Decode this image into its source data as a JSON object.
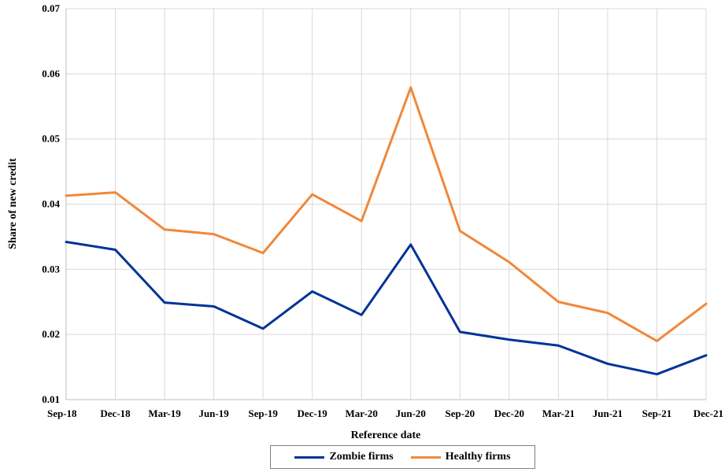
{
  "chart_data": {
    "type": "line",
    "title": "",
    "xlabel": "Reference date",
    "ylabel": "Share of new credit",
    "categories": [
      "Sep-18",
      "Dec-18",
      "Mar-19",
      "Jun-19",
      "Sep-19",
      "Dec-19",
      "Mar-20",
      "Jun-20",
      "Sep-20",
      "Dec-20",
      "Mar-21",
      "Jun-21",
      "Sep-21",
      "Dec-21"
    ],
    "ylim": [
      0.01,
      0.07
    ],
    "yticks": [
      "0.01",
      "0.02",
      "0.03",
      "0.04",
      "0.05",
      "0.06",
      "0.07"
    ],
    "grid": true,
    "legend_position": "bottom",
    "series": [
      {
        "name": "Zombie firms",
        "color": "#003399",
        "values": [
          0.0342,
          0.033,
          0.0249,
          0.0243,
          0.0209,
          0.0266,
          0.023,
          0.0338,
          0.0204,
          0.0192,
          0.0183,
          0.0155,
          0.0139,
          0.0168
        ]
      },
      {
        "name": "Healthy firms",
        "color": "#f0883a",
        "values": [
          0.0413,
          0.0418,
          0.0361,
          0.0354,
          0.0325,
          0.0415,
          0.0374,
          0.0579,
          0.0359,
          0.0311,
          0.025,
          0.0233,
          0.019,
          0.0247
        ]
      }
    ]
  }
}
